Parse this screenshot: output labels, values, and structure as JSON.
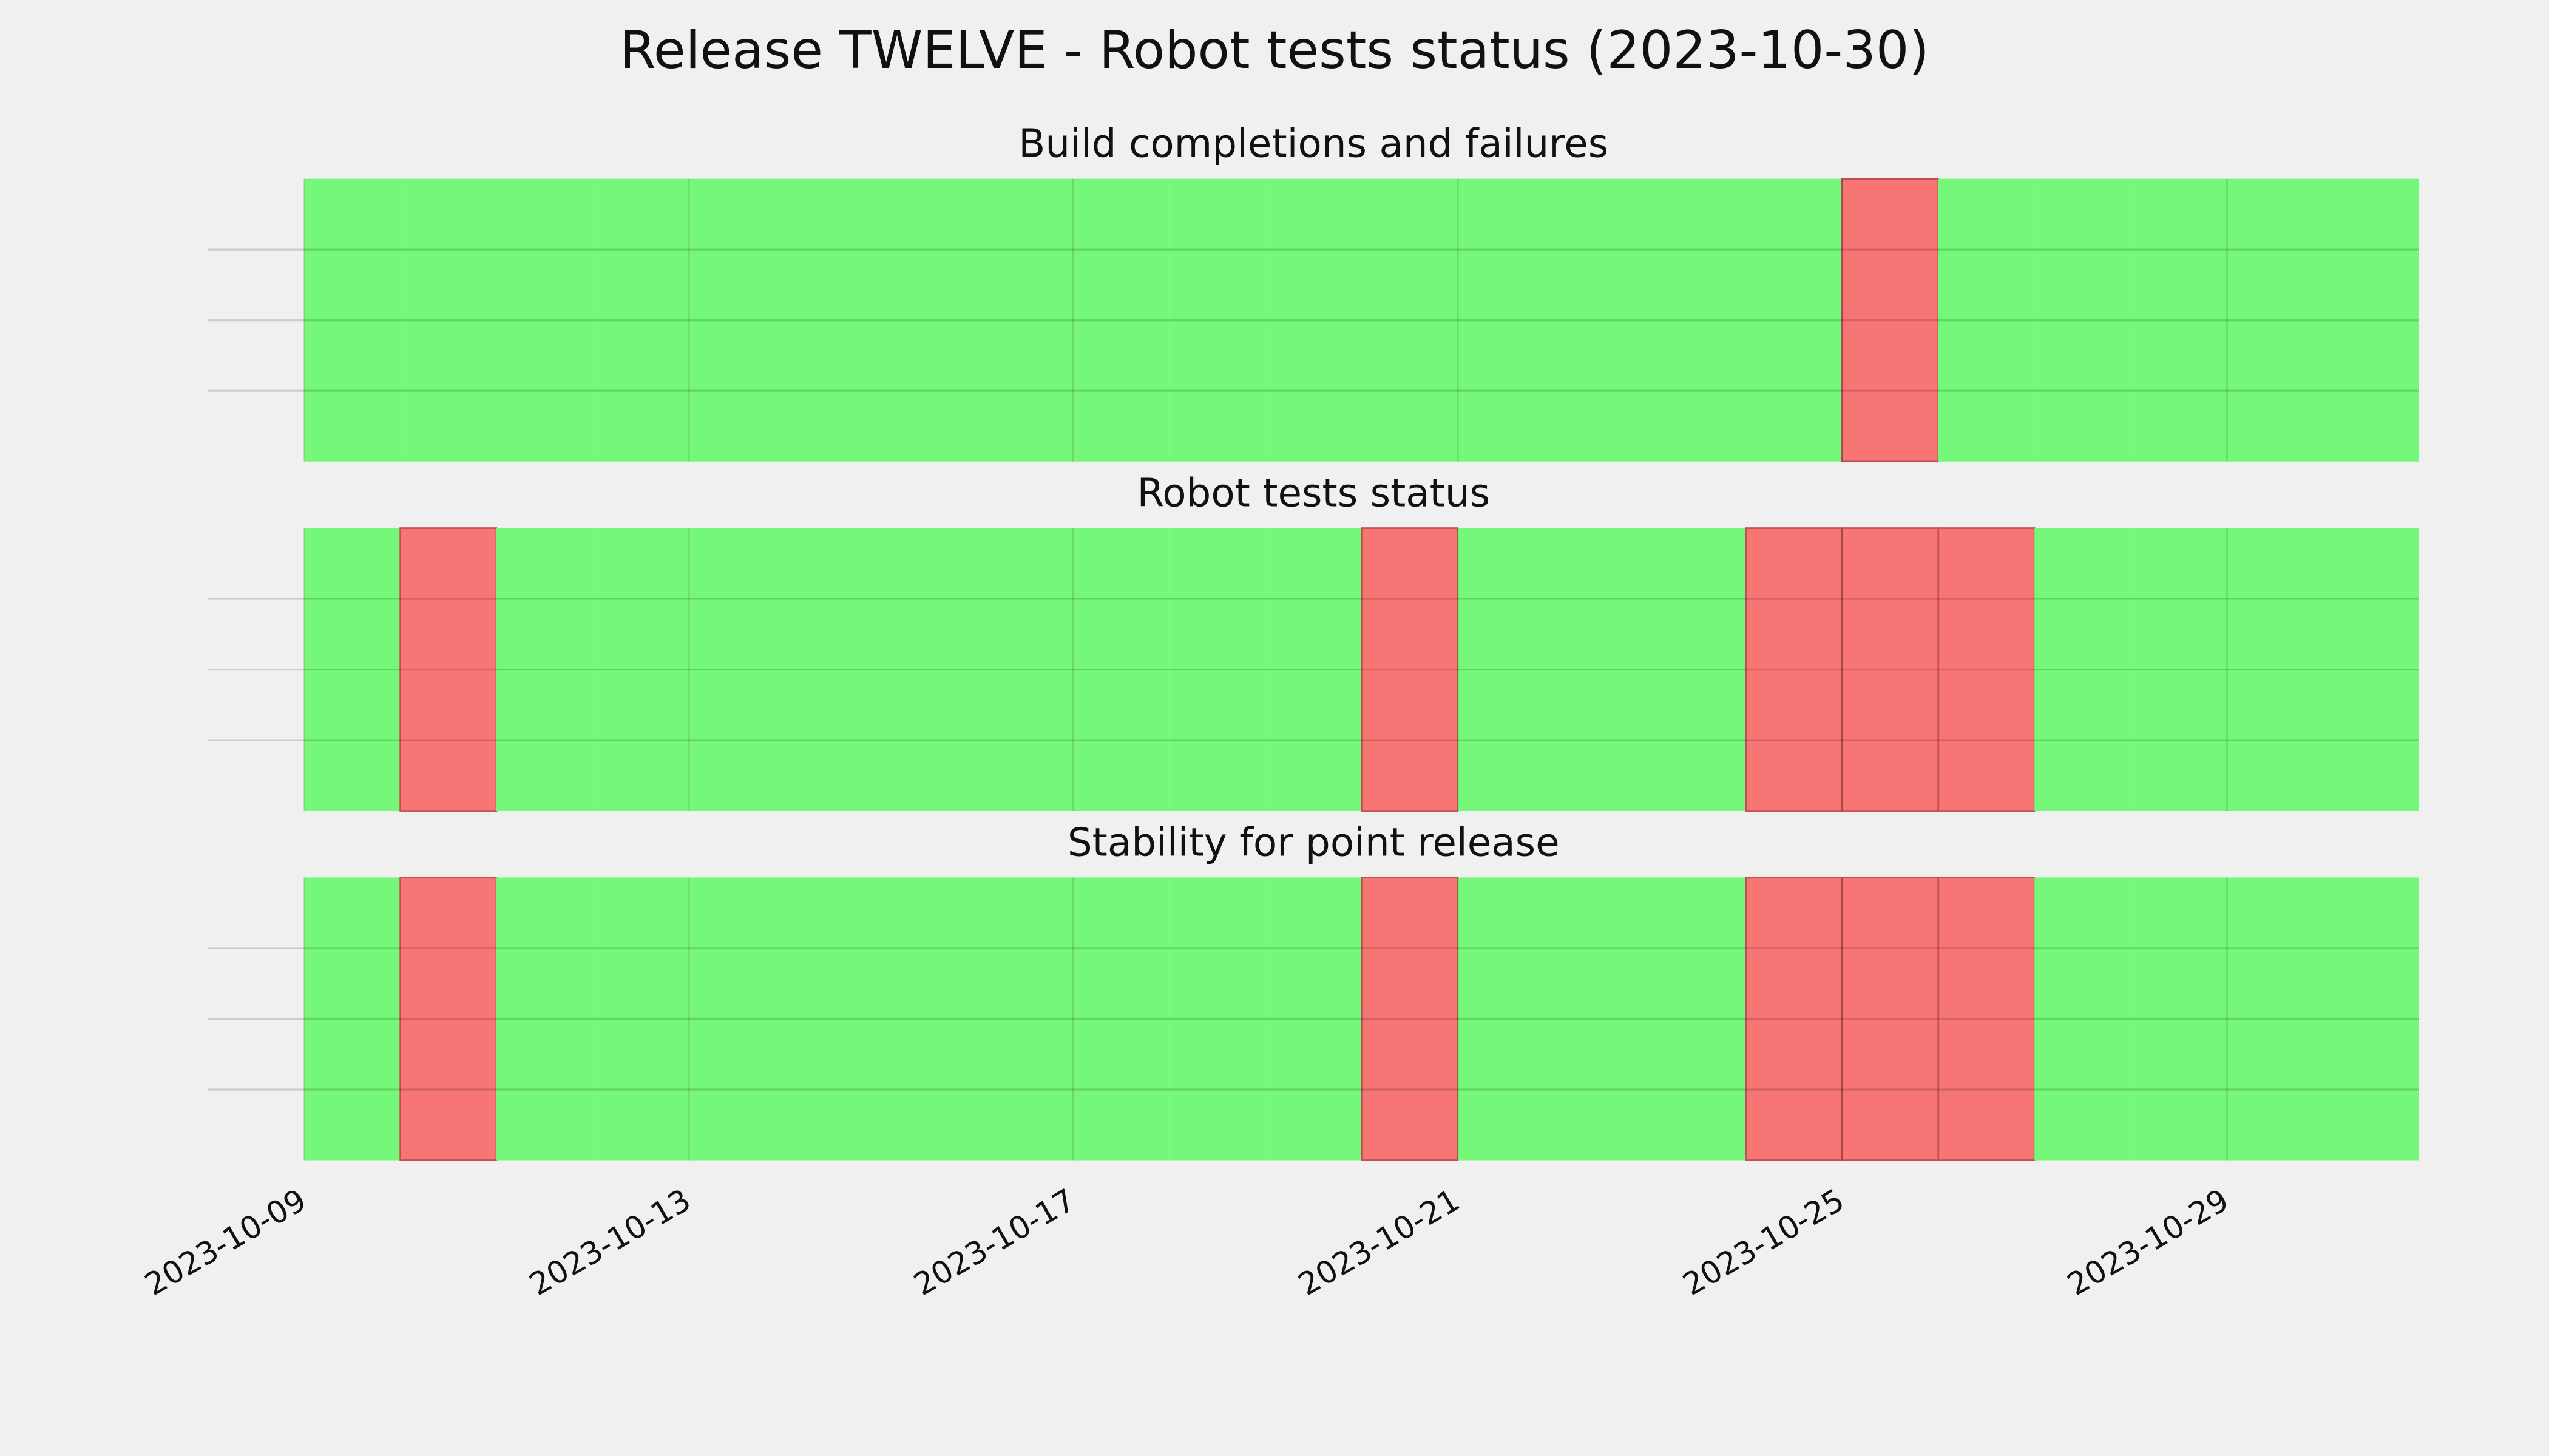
{
  "chart_data": {
    "type": "status-timeline",
    "title": "Release TWELVE - Robot tests status (2023-10-30)",
    "x": [
      "2023-10-09",
      "2023-10-10",
      "2023-10-11",
      "2023-10-12",
      "2023-10-13",
      "2023-10-14",
      "2023-10-15",
      "2023-10-16",
      "2023-10-17",
      "2023-10-18",
      "2023-10-19",
      "2023-10-20",
      "2023-10-21",
      "2023-10-22",
      "2023-10-23",
      "2023-10-24",
      "2023-10-25",
      "2023-10-26",
      "2023-10-27",
      "2023-10-28",
      "2023-10-29",
      "2023-10-30"
    ],
    "xlim": [
      "2023-10-08",
      "2023-10-31"
    ],
    "xticks": [
      "2023-10-09",
      "2023-10-13",
      "2023-10-17",
      "2023-10-21",
      "2023-10-25",
      "2023-10-29"
    ],
    "ylim": [
      0,
      1
    ],
    "yticks": [
      0.25,
      0.5,
      0.75
    ],
    "grid": true,
    "pass_color": "#75f779",
    "fail_color": "#f77575",
    "panels": [
      {
        "title": "Build completions and failures",
        "values": [
          1,
          1,
          1,
          1,
          1,
          1,
          1,
          1,
          1,
          1,
          1,
          1,
          1,
          1,
          1,
          1,
          0,
          1,
          1,
          1,
          1,
          1
        ]
      },
      {
        "title": "Robot tests status",
        "values": [
          1,
          0,
          1,
          1,
          1,
          1,
          1,
          1,
          1,
          1,
          1,
          0,
          1,
          1,
          1,
          0,
          0,
          0,
          1,
          1,
          1,
          1
        ]
      },
      {
        "title": "Stability for point release",
        "values": [
          1,
          0,
          1,
          1,
          1,
          1,
          1,
          1,
          1,
          1,
          1,
          0,
          1,
          1,
          1,
          0,
          0,
          0,
          1,
          1,
          1,
          1
        ]
      }
    ]
  }
}
